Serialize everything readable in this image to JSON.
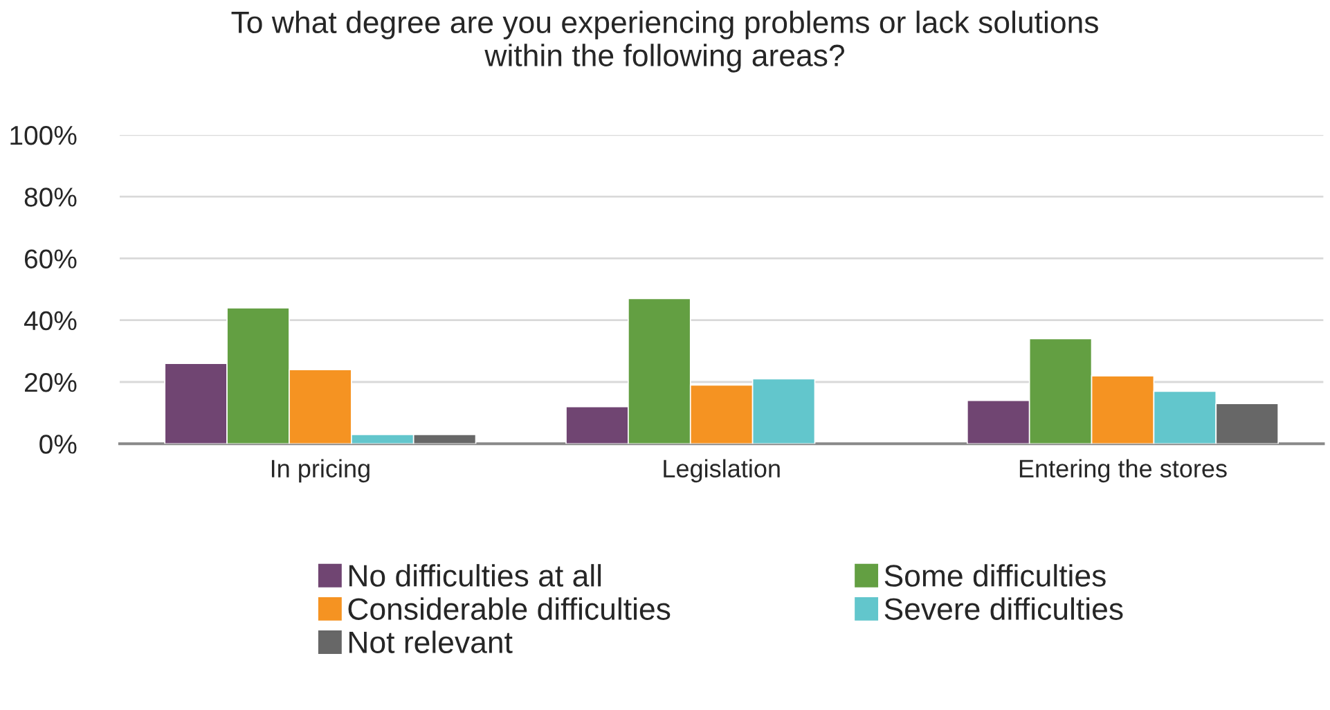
{
  "chart_data": {
    "type": "bar",
    "title": "To what degree are you experiencing problems or lack solutions\nwithin the following areas?",
    "categories": [
      "In pricing",
      "Legislation",
      "Entering the stores"
    ],
    "series": [
      {
        "name": "No difficulties at all",
        "color": "#704572",
        "values": [
          26,
          12,
          14
        ]
      },
      {
        "name": "Some difficulties",
        "color": "#639f42",
        "values": [
          44,
          47,
          34
        ]
      },
      {
        "name": "Considerable difficulties",
        "color": "#f59322",
        "values": [
          24,
          19,
          22
        ]
      },
      {
        "name": "Severe difficulties",
        "color": "#62c6cc",
        "values": [
          3,
          21,
          17
        ]
      },
      {
        "name": "Not relevant",
        "color": "#676767",
        "values": [
          3,
          null,
          13
        ]
      }
    ],
    "ylim": [
      0,
      100
    ],
    "yticks": [
      {
        "value": 0,
        "label": "0%"
      },
      {
        "value": 20,
        "label": "20%"
      },
      {
        "value": 40,
        "label": "40%"
      },
      {
        "value": 60,
        "label": "60%"
      },
      {
        "value": 80,
        "label": "80%"
      },
      {
        "value": 100,
        "label": "100%"
      }
    ],
    "grid": "y",
    "legend": "bottom"
  }
}
